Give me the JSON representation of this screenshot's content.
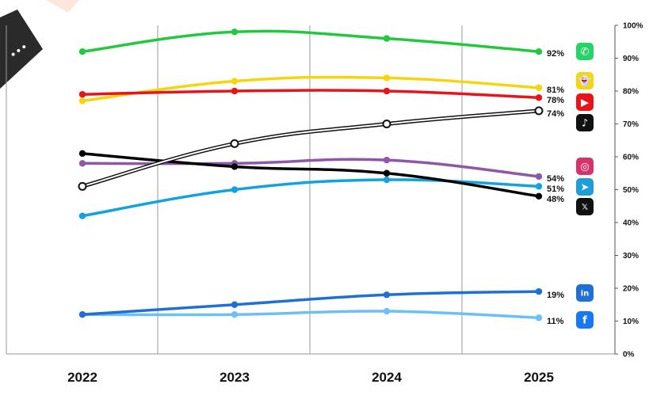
{
  "chart_data": {
    "type": "line",
    "categories": [
      "2022",
      "2023",
      "2024",
      "2025"
    ],
    "y_ticks": [
      "0%",
      "10%",
      "20%",
      "30%",
      "40%",
      "50%",
      "60%",
      "70%",
      "80%",
      "90%",
      "100%"
    ],
    "ylim": [
      0,
      100
    ],
    "y_axis_position": "right",
    "grid": "vertical",
    "legend": "none (brand icons at line ends)",
    "series": [
      {
        "key": "whatsapp",
        "values": [
          92,
          98,
          96,
          92
        ],
        "color": "#22c93e",
        "end_label": "92%",
        "icon": "whatsapp-icon",
        "marker": "filled"
      },
      {
        "key": "snapchat",
        "values": [
          77,
          83,
          84,
          81
        ],
        "color": "#f5d50c",
        "end_label": "81%",
        "icon": "snapchat-icon",
        "marker": "filled"
      },
      {
        "key": "youtube",
        "values": [
          79,
          80,
          80,
          78
        ],
        "color": "#e8141a",
        "end_label": "78%",
        "icon": "youtube-icon",
        "marker": "filled"
      },
      {
        "key": "tiktok",
        "values": [
          51,
          64,
          70,
          74
        ],
        "color": "#111111",
        "end_label": "74%",
        "icon": "tiktok-icon",
        "marker": "hollow"
      },
      {
        "key": "instagram",
        "values": [
          58,
          58,
          59,
          54
        ],
        "color": "#8e57a8",
        "end_label": "54%",
        "icon": "instagram-icon",
        "marker": "filled"
      },
      {
        "key": "telegram",
        "values": [
          42,
          50,
          53,
          51
        ],
        "color": "#12a3de",
        "end_label": "51%",
        "icon": "telegram-icon",
        "marker": "filled"
      },
      {
        "key": "x",
        "values": [
          61,
          57,
          55,
          48
        ],
        "color": "#000000",
        "end_label": "48%",
        "icon": "x-icon",
        "marker": "filled"
      },
      {
        "key": "linkedin",
        "values": [
          12,
          15,
          18,
          19
        ],
        "color": "#1f6fd6",
        "end_label": "19%",
        "icon": "linkedin-icon",
        "marker": "filled"
      },
      {
        "key": "facebook",
        "values": [
          12,
          12,
          13,
          11
        ],
        "color": "#6cc0f5",
        "end_label": "11%",
        "icon": "facebook-icon",
        "marker": "filled"
      }
    ]
  },
  "icons": {
    "whatsapp": {
      "bg": "#25d366",
      "glyph": "✆"
    },
    "snapchat": {
      "bg": "#f5d50c",
      "glyph": "👻"
    },
    "youtube": {
      "bg": "#e8141a",
      "glyph": "▶"
    },
    "tiktok": {
      "bg": "#111111",
      "glyph": "♪"
    },
    "instagram": {
      "bg": "#d6336c",
      "glyph": "◎"
    },
    "telegram": {
      "bg": "#1e9ed9",
      "glyph": "➤"
    },
    "x": {
      "bg": "#111111",
      "glyph": "𝕏"
    },
    "linkedin": {
      "bg": "#1f6fd6",
      "glyph": "in"
    },
    "facebook": {
      "bg": "#1877f2",
      "glyph": "f"
    }
  },
  "corner_badge": {
    "color": "#2a2a2a",
    "accent": "#fde7dc",
    "glyph": "•••"
  }
}
